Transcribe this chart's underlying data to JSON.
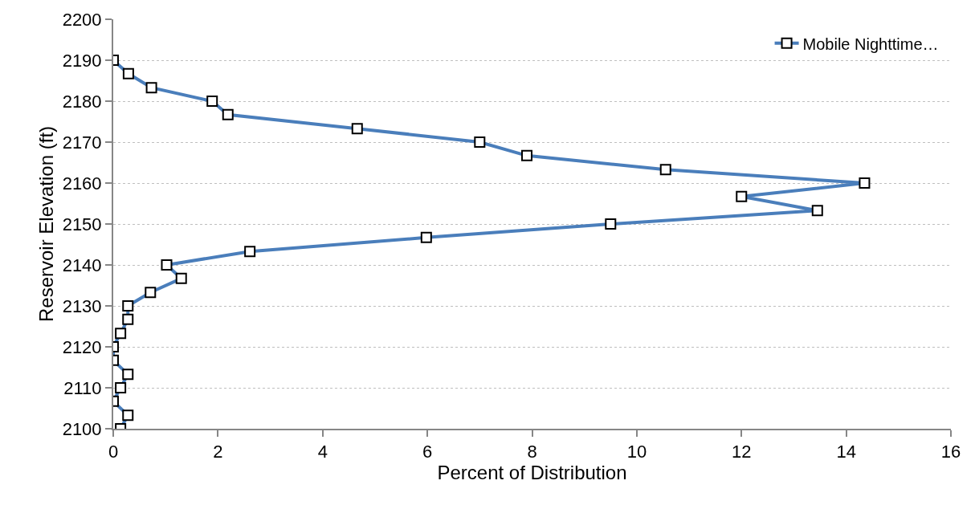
{
  "chart_data": {
    "type": "line",
    "xlabel": "Percent of Distribution",
    "ylabel": "Reservoir Elevation (ft)",
    "xlim": [
      0,
      16
    ],
    "xticks": [
      0,
      2,
      4,
      6,
      8,
      10,
      12,
      14,
      16
    ],
    "ylim": [
      2100,
      2200
    ],
    "yticks": [
      2100,
      2110,
      2120,
      2130,
      2140,
      2150,
      2160,
      2170,
      2180,
      2190,
      2200
    ],
    "grid": "y",
    "legend": "top right",
    "marker": "square",
    "line_style": "solid",
    "series": [
      {
        "name": "Mobile Nighttime…",
        "color": "#4a7ebb",
        "x": [
          0,
          0.29,
          0.73,
          1.89,
          2.19,
          4.66,
          7.0,
          7.9,
          10.55,
          14.35,
          12.0,
          13.45,
          9.5,
          5.98,
          2.61,
          1.02,
          1.3,
          0.71,
          0.28,
          0.28,
          0.14,
          0,
          0,
          0.28,
          0.14,
          0,
          0.28,
          0.14
        ],
        "values": [
          2190,
          2186.7,
          2183.3,
          2180,
          2176.7,
          2173.3,
          2170,
          2166.7,
          2163.3,
          2160,
          2156.7,
          2153.3,
          2150,
          2146.7,
          2143.3,
          2140,
          2136.7,
          2133.3,
          2130,
          2126.7,
          2123.3,
          2120,
          2116.7,
          2113.3,
          2110,
          2106.7,
          2103.3,
          2100
        ]
      }
    ]
  }
}
